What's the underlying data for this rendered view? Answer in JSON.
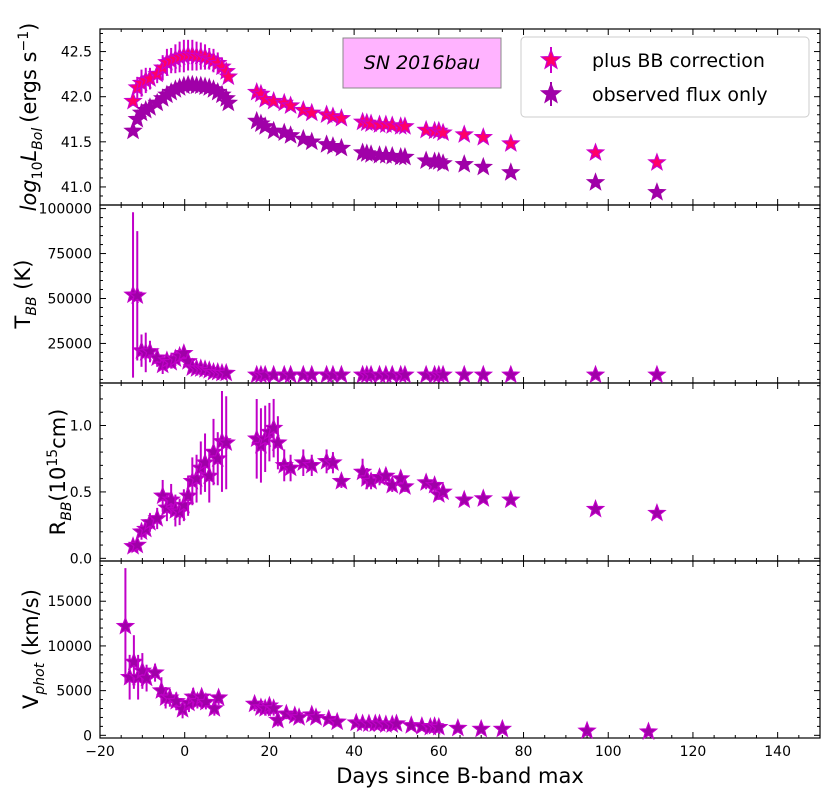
{
  "chart_data": [
    {
      "type": "scatter",
      "panel": "luminosity",
      "ylabel_parts": {
        "base": "log",
        "sub1": "10",
        "L": "L",
        "sub2": "Bol",
        "units": "(ergs s",
        "sup": "−1",
        "close": ")"
      },
      "ylim": [
        40.8,
        42.75
      ],
      "yticks": [
        41.0,
        41.5,
        42.0,
        42.5
      ],
      "ytick_labels": [
        "41.0",
        "41.5",
        "42.0",
        "42.5"
      ],
      "annotation": "SN 2016bau",
      "legend": {
        "position": "top-right",
        "entries": [
          "plus BB correction",
          "observed flux only"
        ]
      },
      "series": [
        {
          "name": "plus BB correction",
          "color": "#cc00cc",
          "face_color": "#ff0066",
          "x": [
            -12.2,
            -11.2,
            -10.2,
            -9.2,
            -8.2,
            -6.5,
            -5.2,
            -4.2,
            -3.2,
            -2.2,
            -1.2,
            -0.2,
            0.8,
            1.8,
            2.8,
            3.8,
            4.8,
            5.8,
            6.8,
            7.8,
            8.8,
            9.8,
            10.3,
            17.0,
            18.0,
            19.0,
            21.0,
            23.5,
            25.0,
            28.0,
            30.0,
            33.5,
            35.0,
            37.0,
            42.0,
            43.0,
            44.0,
            46.0,
            47.5,
            49.0,
            51.0,
            52.0,
            57.0,
            59.0,
            60.0,
            61.0,
            66.0,
            70.5,
            77.0,
            97.0,
            111.5
          ],
          "y": [
            41.95,
            42.1,
            42.15,
            42.18,
            42.2,
            42.25,
            42.32,
            42.38,
            42.4,
            42.42,
            42.44,
            42.45,
            42.46,
            42.46,
            42.45,
            42.45,
            42.44,
            42.42,
            42.4,
            42.37,
            42.33,
            42.28,
            42.22,
            42.05,
            42.03,
            41.97,
            41.95,
            41.93,
            41.9,
            41.85,
            41.82,
            41.8,
            41.78,
            41.76,
            41.72,
            41.71,
            41.7,
            41.69,
            41.69,
            41.68,
            41.67,
            41.67,
            41.63,
            41.62,
            41.62,
            41.6,
            41.58,
            41.55,
            41.48,
            41.38,
            41.27
          ],
          "yerr": [
            0.05,
            0.12,
            0.15,
            0.14,
            0.12,
            0.1,
            0.14,
            0.15,
            0.14,
            0.16,
            0.17,
            0.18,
            0.17,
            0.17,
            0.16,
            0.15,
            0.14,
            0.12,
            0.13,
            0.12,
            0.1,
            0.08,
            0.05,
            0.07,
            0.06,
            0.05,
            0.04,
            0.05,
            0.04,
            0.04,
            0.04,
            0.04,
            0.03,
            0.03,
            0.04,
            0.03,
            0.03,
            0.03,
            0.03,
            0.03,
            0.03,
            0.03,
            0.02,
            0.02,
            0.02,
            0.02,
            0.02,
            0.02,
            0.02,
            0.02,
            0.02
          ]
        },
        {
          "name": "observed flux only",
          "color": "#a000a8",
          "face_color": "#a000a8",
          "x": [
            -12.2,
            -11.2,
            -10.2,
            -9.2,
            -8.2,
            -6.5,
            -5.2,
            -4.2,
            -3.2,
            -2.2,
            -1.2,
            -0.2,
            0.8,
            1.8,
            2.8,
            3.8,
            4.8,
            5.8,
            6.8,
            7.8,
            8.8,
            9.8,
            10.3,
            17.0,
            18.0,
            19.0,
            21.0,
            23.5,
            25.0,
            28.0,
            30.0,
            33.5,
            35.0,
            37.0,
            42.0,
            43.0,
            44.0,
            46.0,
            47.5,
            49.0,
            51.0,
            52.0,
            57.0,
            59.0,
            60.0,
            61.0,
            66.0,
            70.5,
            77.0,
            97.0,
            111.5
          ],
          "y": [
            41.62,
            41.75,
            41.82,
            41.85,
            41.88,
            41.93,
            41.98,
            42.02,
            42.05,
            42.08,
            42.1,
            42.12,
            42.13,
            42.13,
            42.12,
            42.12,
            42.11,
            42.1,
            42.08,
            42.05,
            42.02,
            41.98,
            41.93,
            41.73,
            41.7,
            41.67,
            41.62,
            41.6,
            41.57,
            41.53,
            41.5,
            41.47,
            41.45,
            41.43,
            41.38,
            41.37,
            41.36,
            41.35,
            41.35,
            41.34,
            41.33,
            41.33,
            41.29,
            41.28,
            41.28,
            41.26,
            41.25,
            41.22,
            41.16,
            41.05,
            40.94
          ],
          "yerr": [
            0.03,
            0.04,
            0.04,
            0.04,
            0.04,
            0.03,
            0.04,
            0.04,
            0.04,
            0.04,
            0.04,
            0.04,
            0.04,
            0.04,
            0.04,
            0.04,
            0.04,
            0.04,
            0.04,
            0.04,
            0.04,
            0.03,
            0.03,
            0.03,
            0.03,
            0.03,
            0.03,
            0.03,
            0.02,
            0.02,
            0.02,
            0.02,
            0.02,
            0.02,
            0.02,
            0.02,
            0.02,
            0.02,
            0.02,
            0.02,
            0.02,
            0.02,
            0.02,
            0.02,
            0.02,
            0.02,
            0.02,
            0.02,
            0.02,
            0.02,
            0.02
          ]
        }
      ]
    },
    {
      "type": "scatter",
      "panel": "temperature",
      "ylabel_parts": {
        "base": "T",
        "sub": "BB",
        "units": " (K)"
      },
      "ylim": [
        3000,
        102000
      ],
      "yticks": [
        25000,
        50000,
        75000,
        100000
      ],
      "ytick_labels": [
        "25000",
        "50000",
        "75000",
        "100000"
      ],
      "series": [
        {
          "name": "T_BB",
          "color": "#c000c8",
          "face_color": "#a000a8",
          "x": [
            -12.2,
            -11.2,
            -10.2,
            -9.2,
            -8.2,
            -6.5,
            -5.2,
            -4.2,
            -3.2,
            -2.2,
            -1.2,
            -0.2,
            0.8,
            1.8,
            2.8,
            3.8,
            4.8,
            5.8,
            6.8,
            7.8,
            8.8,
            9.8,
            17.0,
            18.0,
            19.0,
            21.0,
            23.5,
            25.0,
            28.0,
            30.0,
            33.5,
            35.0,
            37.0,
            42.0,
            43.0,
            44.0,
            46.0,
            47.5,
            49.0,
            51.0,
            52.0,
            57.0,
            59.0,
            60.0,
            61.0,
            66.0,
            70.5,
            77.0,
            97.0,
            111.5
          ],
          "y": [
            52000,
            51500,
            21000,
            20000,
            20500,
            17000,
            13000,
            15500,
            14500,
            16500,
            18000,
            19500,
            15000,
            11500,
            11000,
            11000,
            10500,
            10000,
            9000,
            9000,
            8500,
            8500,
            7500,
            7500,
            7500,
            7500,
            7500,
            7500,
            7500,
            7500,
            7500,
            7500,
            7500,
            7500,
            7500,
            7500,
            7500,
            7500,
            7500,
            7500,
            7500,
            7500,
            7500,
            7500,
            7500,
            7500,
            7500,
            7500,
            7500,
            7500
          ],
          "yerr": [
            46000,
            36000,
            9000,
            11000,
            6000,
            5000,
            5000,
            4000,
            3500,
            4000,
            3500,
            3500,
            3000,
            2500,
            2500,
            2000,
            2000,
            1800,
            1800,
            1800,
            1500,
            1500,
            1500,
            1500,
            1500,
            1500,
            1500,
            1500,
            1500,
            1500,
            1500,
            1500,
            1500,
            1500,
            1500,
            1500,
            1500,
            1500,
            1500,
            1500,
            1500,
            1500,
            1500,
            1500,
            1500,
            1200,
            1200,
            1200,
            1200,
            1200
          ]
        }
      ]
    },
    {
      "type": "scatter",
      "panel": "radius",
      "ylabel_parts": {
        "base": "R",
        "sub": "BB",
        "units": "(10",
        "sup": "15",
        "close": "cm)"
      },
      "ylim": [
        -0.02,
        1.32
      ],
      "yticks": [
        0.0,
        0.5,
        1.0
      ],
      "ytick_labels": [
        "0.0",
        "0.5",
        "1.0"
      ],
      "series": [
        {
          "name": "R_BB",
          "color": "#c000c8",
          "face_color": "#a000a8",
          "x": [
            -12.2,
            -11.2,
            -10.2,
            -9.2,
            -8.2,
            -6.5,
            -5.2,
            -4.2,
            -3.2,
            -2.2,
            -1.2,
            -0.2,
            0.8,
            1.8,
            2.8,
            3.8,
            4.8,
            5.8,
            6.8,
            7.8,
            8.8,
            9.8,
            17.0,
            18.0,
            19.0,
            20.0,
            21.0,
            22.0,
            23.5,
            25.0,
            28.0,
            30.0,
            33.5,
            35.0,
            37.0,
            42.0,
            43.0,
            44.0,
            46.0,
            47.5,
            49.0,
            51.0,
            52.0,
            57.0,
            59.0,
            60.0,
            61.0,
            66.0,
            70.5,
            77.0,
            97.0,
            111.5
          ],
          "y": [
            0.09,
            0.1,
            0.2,
            0.22,
            0.27,
            0.3,
            0.47,
            0.38,
            0.44,
            0.36,
            0.35,
            0.4,
            0.47,
            0.58,
            0.6,
            0.68,
            0.72,
            0.62,
            0.8,
            0.75,
            0.88,
            0.87,
            0.9,
            0.85,
            0.9,
            0.95,
            0.98,
            0.87,
            0.7,
            0.68,
            0.72,
            0.7,
            0.73,
            0.72,
            0.58,
            0.65,
            0.6,
            0.58,
            0.61,
            0.62,
            0.55,
            0.6,
            0.54,
            0.57,
            0.55,
            0.48,
            0.5,
            0.44,
            0.45,
            0.44,
            0.37,
            0.34
          ],
          "yerr": [
            0.04,
            0.05,
            0.06,
            0.06,
            0.07,
            0.08,
            0.12,
            0.1,
            0.12,
            0.12,
            0.1,
            0.12,
            0.15,
            0.18,
            0.18,
            0.2,
            0.22,
            0.2,
            0.25,
            0.2,
            0.38,
            0.35,
            0.3,
            0.28,
            0.25,
            0.22,
            0.22,
            0.2,
            0.12,
            0.1,
            0.1,
            0.08,
            0.09,
            0.08,
            0.05,
            0.1,
            0.08,
            0.06,
            0.06,
            0.06,
            0.05,
            0.06,
            0.04,
            0.05,
            0.05,
            0.04,
            0.04,
            0.03,
            0.03,
            0.03,
            0.03,
            0.03
          ]
        }
      ]
    },
    {
      "type": "scatter",
      "panel": "velocity",
      "ylabel_parts": {
        "base": "V",
        "sub": "phot",
        "units": " (km/s)"
      },
      "ylim": [
        -300,
        19500
      ],
      "yticks": [
        0,
        5000,
        10000,
        15000
      ],
      "ytick_labels": [
        "0",
        "5000",
        "10000",
        "15000"
      ],
      "series": [
        {
          "name": "V_phot",
          "color": "#c000c8",
          "face_color": "#a000a8",
          "x": [
            -14.0,
            -13.0,
            -12.0,
            -11.0,
            -10.0,
            -9.0,
            -7.0,
            -5.5,
            -4.5,
            -3.5,
            -2.0,
            -0.5,
            1.0,
            2.0,
            3.0,
            4.0,
            5.0,
            7.0,
            8.0,
            16.5,
            18.0,
            19.0,
            20.0,
            21.0,
            22.0,
            24.0,
            26.0,
            27.0,
            30.0,
            31.0,
            34.0,
            36.0,
            40.5,
            42.0,
            43.5,
            45.0,
            46.0,
            47.5,
            49.0,
            50.0,
            53.5,
            56.0,
            58.0,
            59.0,
            60.0,
            64.5,
            70.0,
            75.0,
            95.0,
            109.5
          ],
          "y": [
            12200,
            6500,
            8200,
            6500,
            7200,
            6400,
            7000,
            5000,
            4200,
            4200,
            3800,
            2900,
            3600,
            4300,
            3800,
            4300,
            3700,
            3000,
            4200,
            3500,
            3100,
            3000,
            3300,
            3000,
            1700,
            2400,
            2200,
            2000,
            2300,
            2000,
            1800,
            1500,
            1400,
            1300,
            1300,
            1300,
            1300,
            1200,
            1200,
            1300,
            1100,
            1000,
            900,
            1000,
            900,
            800,
            700,
            700,
            500,
            400
          ],
          "yerr": [
            6500,
            2500,
            3000,
            2500,
            2000,
            1500,
            1000,
            1500,
            1200,
            1000,
            1000,
            1000,
            1000,
            1000,
            800,
            800,
            800,
            800,
            800,
            800,
            800,
            800,
            800,
            800,
            700,
            600,
            500,
            500,
            600,
            500,
            500,
            500,
            400,
            400,
            400,
            400,
            400,
            400,
            400,
            400,
            300,
            300,
            300,
            300,
            300,
            300,
            300,
            300,
            300,
            300
          ]
        }
      ]
    }
  ],
  "xaxis": {
    "xlabel": "Days since B-band max",
    "xlim": [
      -20,
      150
    ],
    "xticks": [
      -20,
      0,
      20,
      40,
      60,
      80,
      100,
      120,
      140
    ],
    "xtick_labels": [
      "−20",
      "0",
      "20",
      "40",
      "60",
      "80",
      "100",
      "120",
      "140"
    ]
  }
}
